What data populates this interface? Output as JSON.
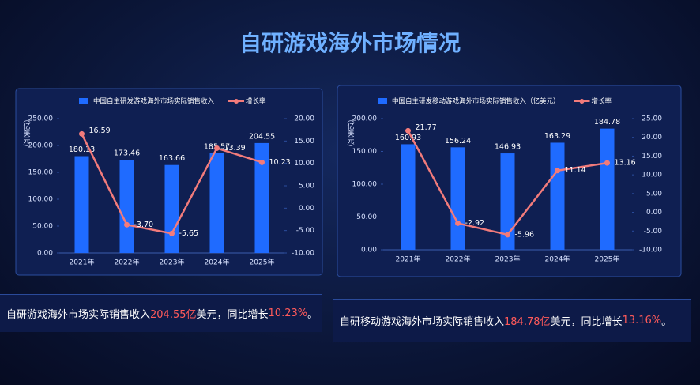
{
  "title": "自研游戏海外市场情况",
  "chart_data": [
    {
      "type": "combo",
      "y_label": "（亿美元）",
      "legend": "top",
      "categories": [
        "2021年",
        "2022年",
        "2023年",
        "2024年",
        "2025年"
      ],
      "series": [
        {
          "name": "中国自主研发游戏海外市场实际销售收入",
          "type": "bar",
          "color": "#1f6bff",
          "values": [
            180.13,
            173.46,
            163.66,
            185.57,
            204.55
          ]
        },
        {
          "name": "增长率",
          "type": "line",
          "axis": "y2",
          "color": "#f27b7b",
          "values": [
            16.59,
            -3.7,
            -5.65,
            13.39,
            10.23
          ],
          "value_labels": [
            "16.59",
            "-3.70",
            "-5.65",
            "13.39",
            "10.23"
          ]
        }
      ],
      "ylim": [
        0,
        250
      ],
      "yticks": [
        {
          "value": 0,
          "label": "0.00"
        },
        {
          "value": 50,
          "label": "50.00"
        },
        {
          "value": 100,
          "label": "100.00"
        },
        {
          "value": 150,
          "label": "150.00"
        },
        {
          "value": 200,
          "label": "200.00"
        },
        {
          "value": 250,
          "label": "250.00"
        }
      ],
      "y2lim": [
        -10,
        20
      ],
      "y2ticks": [
        {
          "value": -10,
          "label": "-10.00"
        },
        {
          "value": -5,
          "label": "-5.00"
        },
        {
          "value": 0,
          "label": "0.00"
        },
        {
          "value": 5,
          "label": "5.00"
        },
        {
          "value": 10,
          "label": "10.00"
        },
        {
          "value": 15,
          "label": "15.00"
        },
        {
          "value": 20,
          "label": "20.00"
        }
      ]
    },
    {
      "type": "combo",
      "y_label": "（亿美元）",
      "legend": "top",
      "categories": [
        "2021年",
        "2022年",
        "2023年",
        "2024年",
        "2025年"
      ],
      "series": [
        {
          "name": "中国自主研发移动游戏海外市场实际销售收入（亿美元）",
          "type": "bar",
          "color": "#1f6bff",
          "values": [
            160.93,
            156.24,
            146.93,
            163.29,
            184.78
          ]
        },
        {
          "name": "增长率",
          "type": "line",
          "axis": "y2",
          "color": "#f27b7b",
          "values": [
            21.77,
            -2.92,
            -5.96,
            11.14,
            13.16
          ]
        }
      ],
      "ylim": [
        0,
        200
      ],
      "yticks": [
        {
          "value": 0,
          "label": "0.00"
        },
        {
          "value": 50,
          "label": "50.00"
        },
        {
          "value": 100,
          "label": "100.00"
        },
        {
          "value": 150,
          "label": "150.00"
        },
        {
          "value": 200,
          "label": "200.00"
        }
      ],
      "y2lim": [
        -10,
        25
      ],
      "y2ticks": [
        {
          "value": -10,
          "label": "-10.00"
        },
        {
          "value": -5,
          "label": "-5.00"
        },
        {
          "value": 0,
          "label": "0.00"
        },
        {
          "value": 5,
          "label": "5.00"
        },
        {
          "value": 10,
          "label": "10.00"
        },
        {
          "value": 15,
          "label": "15.00"
        },
        {
          "value": 20,
          "label": "20.00"
        },
        {
          "value": 25,
          "label": "25.00"
        }
      ]
    }
  ],
  "captions": [
    [
      "自研游戏海外市场实际销售收入",
      "204.55亿",
      "美元，同比增长",
      "10.23%",
      "。"
    ],
    [
      "自研移动游戏海外市场实际销售收入",
      "184.78亿",
      "美元，同比增长",
      "13.16%",
      "。"
    ]
  ]
}
